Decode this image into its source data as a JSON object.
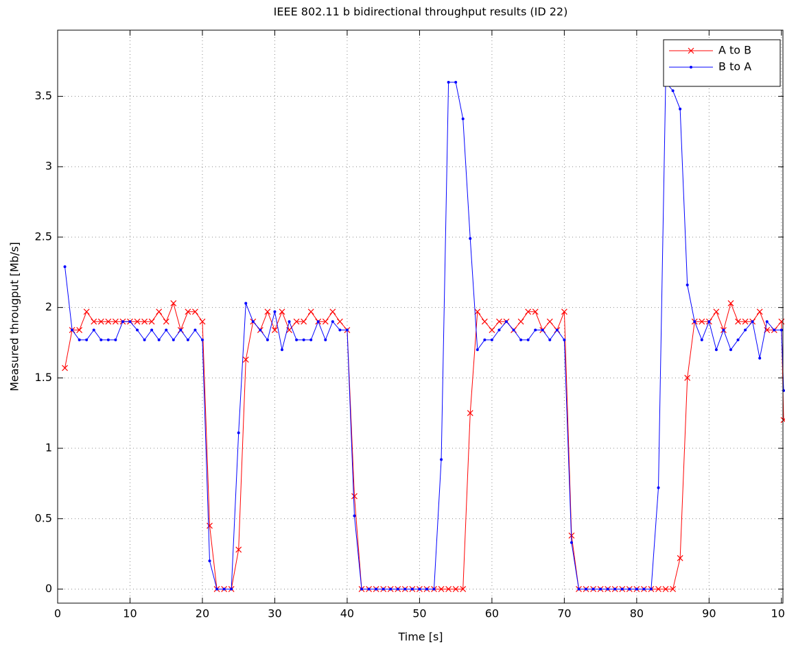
{
  "chart_data": {
    "type": "line",
    "title": "IEEE 802.11 b bidirectional throughput results (ID 22)",
    "xlabel": "Time [s]",
    "ylabel": "Measured througput [Mb/s]",
    "x": [
      1,
      2,
      3,
      4,
      5,
      6,
      7,
      8,
      9,
      10,
      11,
      12,
      13,
      14,
      15,
      16,
      17,
      18,
      19,
      20,
      21,
      22,
      23,
      24,
      25,
      26,
      27,
      28,
      29,
      30,
      31,
      32,
      33,
      34,
      35,
      36,
      37,
      38,
      39,
      40,
      41,
      42,
      43,
      44,
      45,
      46,
      47,
      48,
      49,
      50,
      51,
      52,
      53,
      54,
      55,
      56,
      57,
      58,
      59,
      60,
      61,
      62,
      63,
      64,
      65,
      66,
      67,
      68,
      69,
      70,
      71,
      72,
      73,
      74,
      75,
      76,
      77,
      78,
      79,
      80,
      81,
      82,
      83,
      84,
      85,
      86,
      87,
      88,
      89,
      90,
      91,
      92,
      93,
      94,
      95,
      96,
      97,
      98,
      99,
      100,
      100.3
    ],
    "series": [
      {
        "name": "A to B",
        "color": "#ff0000",
        "marker": "x",
        "values": [
          1.57,
          1.84,
          1.84,
          1.97,
          1.9,
          1.9,
          1.9,
          1.9,
          1.9,
          1.9,
          1.9,
          1.9,
          1.9,
          1.97,
          1.9,
          2.03,
          1.84,
          1.97,
          1.97,
          1.9,
          0.45,
          0,
          0,
          0,
          0.28,
          1.63,
          1.9,
          1.84,
          1.97,
          1.84,
          1.97,
          1.84,
          1.9,
          1.9,
          1.97,
          1.9,
          1.9,
          1.97,
          1.9,
          1.84,
          0.66,
          0,
          0,
          0,
          0,
          0,
          0,
          0,
          0,
          0,
          0,
          0,
          0,
          0,
          0,
          0,
          1.25,
          1.97,
          1.9,
          1.84,
          1.9,
          1.9,
          1.84,
          1.9,
          1.97,
          1.97,
          1.84,
          1.9,
          1.84,
          1.97,
          0.38,
          0,
          0,
          0,
          0,
          0,
          0,
          0,
          0,
          0,
          0,
          0,
          0,
          0,
          0,
          0.22,
          1.5,
          1.9,
          1.9,
          1.9,
          1.97,
          1.84,
          2.03,
          1.9,
          1.9,
          1.9,
          1.97,
          1.84,
          1.84,
          1.9,
          1.2
        ]
      },
      {
        "name": "B to A",
        "color": "#0000ff",
        "marker": ".",
        "values": [
          2.29,
          1.84,
          1.77,
          1.77,
          1.84,
          1.77,
          1.77,
          1.77,
          1.9,
          1.9,
          1.84,
          1.77,
          1.84,
          1.77,
          1.84,
          1.77,
          1.84,
          1.77,
          1.84,
          1.77,
          0.2,
          0,
          0,
          0,
          1.11,
          2.03,
          1.9,
          1.84,
          1.77,
          1.97,
          1.7,
          1.9,
          1.77,
          1.77,
          1.77,
          1.9,
          1.77,
          1.9,
          1.84,
          1.84,
          0.52,
          0,
          0,
          0,
          0,
          0,
          0,
          0,
          0,
          0,
          0,
          0,
          0.92,
          3.6,
          3.6,
          3.34,
          2.49,
          1.7,
          1.77,
          1.77,
          1.84,
          1.9,
          1.84,
          1.77,
          1.77,
          1.84,
          1.84,
          1.77,
          1.84,
          1.77,
          0.33,
          0,
          0,
          0,
          0,
          0,
          0,
          0,
          0,
          0,
          0,
          0,
          0.72,
          3.6,
          3.54,
          3.41,
          2.16,
          1.9,
          1.77,
          1.9,
          1.7,
          1.84,
          1.7,
          1.77,
          1.84,
          1.9,
          1.64,
          1.9,
          1.84,
          1.84,
          1.41
        ]
      }
    ],
    "xlim": [
      0,
      100.3
    ],
    "xticks": [
      0,
      10,
      20,
      30,
      40,
      50,
      60,
      70,
      80,
      90,
      100
    ],
    "ylim": [
      -0.1,
      3.97
    ],
    "yticks": [
      0,
      0.5,
      1,
      1.5,
      2,
      2.5,
      3,
      3.5
    ],
    "grid": true,
    "legend": "northeast"
  }
}
